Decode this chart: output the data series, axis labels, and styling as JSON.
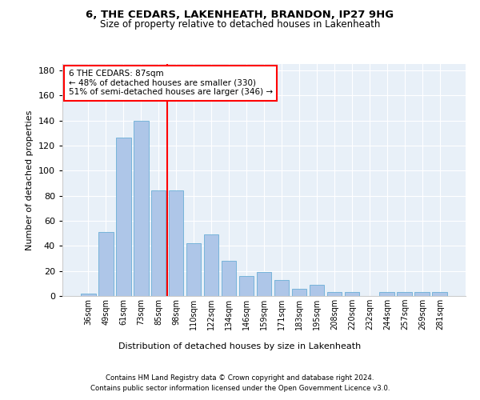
{
  "title1": "6, THE CEDARS, LAKENHEATH, BRANDON, IP27 9HG",
  "title2": "Size of property relative to detached houses in Lakenheath",
  "xlabel": "Distribution of detached houses by size in Lakenheath",
  "ylabel": "Number of detached properties",
  "categories": [
    "36sqm",
    "49sqm",
    "61sqm",
    "73sqm",
    "85sqm",
    "98sqm",
    "110sqm",
    "122sqm",
    "134sqm",
    "146sqm",
    "159sqm",
    "171sqm",
    "183sqm",
    "195sqm",
    "208sqm",
    "220sqm",
    "232sqm",
    "244sqm",
    "257sqm",
    "269sqm",
    "281sqm"
  ],
  "values": [
    2,
    51,
    126,
    140,
    84,
    84,
    42,
    49,
    28,
    16,
    19,
    13,
    6,
    9,
    3,
    3,
    0,
    3,
    3,
    3,
    3
  ],
  "bar_color": "#aec6e8",
  "bar_edge_color": "#6aaed6",
  "vline_x": 4.5,
  "vline_color": "red",
  "annotation_line1": "6 THE CEDARS: 87sqm",
  "annotation_line2": "← 48% of detached houses are smaller (330)",
  "annotation_line3": "51% of semi-detached houses are larger (346) →",
  "annotation_box_color": "white",
  "annotation_box_edge_color": "red",
  "ylim": [
    0,
    185
  ],
  "yticks": [
    0,
    20,
    40,
    60,
    80,
    100,
    120,
    140,
    160,
    180
  ],
  "footer1": "Contains HM Land Registry data © Crown copyright and database right 2024.",
  "footer2": "Contains public sector information licensed under the Open Government Licence v3.0.",
  "plot_bg_color": "#e8f0f8"
}
